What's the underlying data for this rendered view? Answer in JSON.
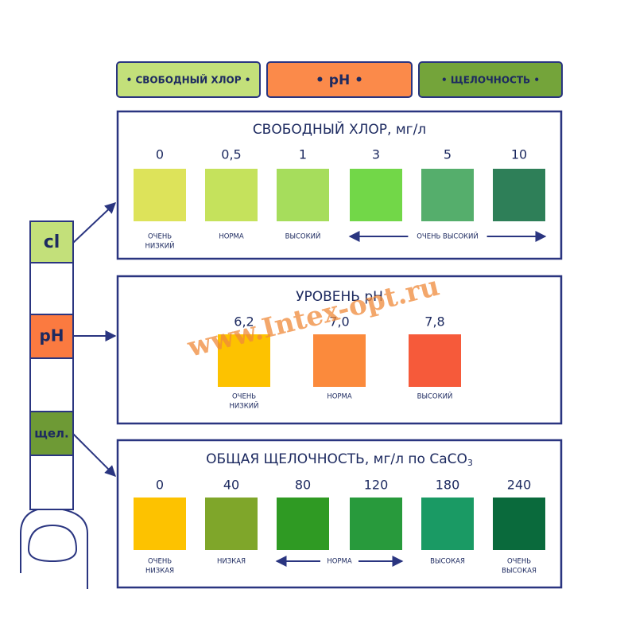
{
  "tabs": [
    "• СВОБОДНЫЙ ХЛОР •",
    "• pH •",
    "• ЩЕЛОЧНОСТЬ •"
  ],
  "strip": [
    "cl",
    "pH",
    "щел."
  ],
  "watermark": "www.Intex-opt.ru",
  "panels": [
    {
      "title": "СВОБОДНЫЙ ХЛОР, мг/л",
      "swatches": [
        {
          "label": "0",
          "color": "#dde35a"
        },
        {
          "label": "0,5",
          "color": "#c5e25c"
        },
        {
          "label": "1",
          "color": "#a6dd5c"
        },
        {
          "label": "3",
          "color": "#72d748"
        },
        {
          "label": "5",
          "color": "#55ae6c"
        },
        {
          "label": "10",
          "color": "#2e7f58"
        }
      ],
      "captions": [
        [
          "ОЧЕНЬ",
          "НИЗКИЙ"
        ],
        [
          "НОРМА"
        ],
        [
          "ВЫСОКИЙ"
        ],
        [
          "ОЧЕНЬ ВЫСОКИЙ"
        ]
      ]
    },
    {
      "title": "УРОВЕНЬ pH",
      "swatches": [
        {
          "label": "6,2",
          "color": "#fdc200"
        },
        {
          "label": "7,0",
          "color": "#fb8a3c"
        },
        {
          "label": "7,8",
          "color": "#f65a3a"
        }
      ],
      "captions": [
        [
          "ОЧЕНЬ",
          "НИЗКИЙ"
        ],
        [
          "НОРМА"
        ],
        [
          "ВЫСОКИЙ"
        ]
      ]
    },
    {
      "title": "ОБЩАЯ ЩЕЛОЧНОСТЬ, мг/л по CaCO",
      "title_subscript": "3",
      "swatches": [
        {
          "label": "0",
          "color": "#fdc200"
        },
        {
          "label": "40",
          "color": "#7fa62a"
        },
        {
          "label": "80",
          "color": "#2f9a23"
        },
        {
          "label": "120",
          "color": "#289a3c"
        },
        {
          "label": "180",
          "color": "#1a9a64"
        },
        {
          "label": "240",
          "color": "#0a6a3c"
        }
      ],
      "captions": [
        [
          "ОЧЕНЬ",
          "НИЗКАЯ"
        ],
        [
          "НИЗКАЯ"
        ],
        [
          "НОРМА"
        ],
        [
          "ВЫСОКАЯ"
        ],
        [
          "ОЧЕНЬ",
          "ВЫСОКАЯ"
        ]
      ]
    }
  ]
}
